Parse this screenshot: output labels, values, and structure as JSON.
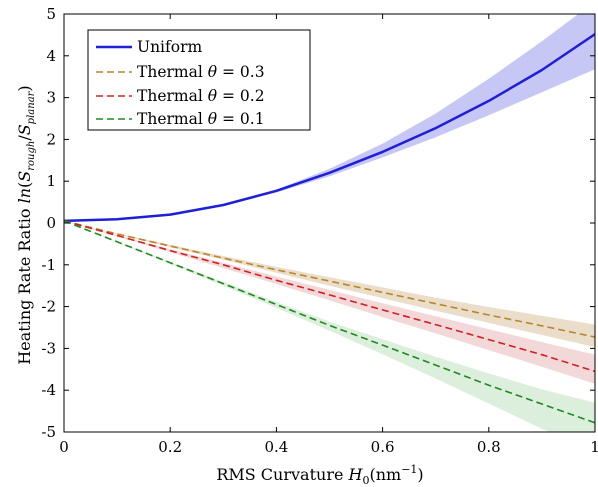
{
  "chart_data": {
    "type": "line",
    "title": "",
    "xlabel": {
      "text": "RMS Curvature ",
      "sym": "H",
      "sub": "0",
      "unit": "(nm",
      "sup": "−1",
      "close": ")"
    },
    "ylabel": {
      "text": "Heating Rate Ratio ",
      "ln": "ln",
      "open": "(",
      "s1": "S",
      "s1sub": "rough",
      "slash": "/",
      "s2": "S",
      "s2sub": "planar",
      "close": ")"
    },
    "xlim": [
      0,
      1
    ],
    "ylim": [
      -5,
      5
    ],
    "xticks": [
      "0",
      "0.2",
      "0.4",
      "0.6",
      "0.8",
      "1"
    ],
    "xtick_values": [
      0,
      0.2,
      0.4,
      0.6,
      0.8,
      1
    ],
    "yticks": [
      "5",
      "4",
      "3",
      "2",
      "1",
      "0",
      "-1",
      "-2",
      "-3",
      "-4",
      "-5"
    ],
    "ytick_values": [
      5,
      4,
      3,
      2,
      1,
      0,
      -1,
      -2,
      -3,
      -4,
      -5
    ],
    "grid": false,
    "legend_position": "top-left",
    "x": [
      0,
      0.1,
      0.2,
      0.3,
      0.4,
      0.5,
      0.6,
      0.7,
      0.8,
      0.9,
      1.0
    ],
    "series": [
      {
        "name": "Uniform",
        "name_prefix": "Uniform",
        "theta": "",
        "style": "solid",
        "color": "#1f1fd6",
        "band_color": "#9999ee",
        "values": [
          0.05,
          0.09,
          0.2,
          0.43,
          0.77,
          1.2,
          1.7,
          2.27,
          2.92,
          3.66,
          4.52
        ],
        "band_lower": [
          0.05,
          0.09,
          0.2,
          0.42,
          0.73,
          1.12,
          1.57,
          2.05,
          2.58,
          3.13,
          3.68
        ],
        "band_upper": [
          0.05,
          0.09,
          0.2,
          0.44,
          0.8,
          1.3,
          1.9,
          2.62,
          3.45,
          4.35,
          5.3
        ]
      },
      {
        "name": "Thermal θ = 0.3",
        "name_prefix": "Thermal ",
        "theta": "θ",
        "theta_value": " = 0.3",
        "style": "dashed",
        "color": "#b8862b",
        "band_color": "#d9c2a0",
        "values": [
          0.05,
          -0.26,
          -0.55,
          -0.84,
          -1.12,
          -1.39,
          -1.66,
          -1.93,
          -2.2,
          -2.46,
          -2.73
        ],
        "band_lower": [
          0.05,
          -0.27,
          -0.58,
          -0.88,
          -1.19,
          -1.5,
          -1.8,
          -2.1,
          -2.39,
          -2.68,
          -2.97
        ],
        "band_upper": [
          0.05,
          -0.25,
          -0.52,
          -0.79,
          -1.05,
          -1.3,
          -1.54,
          -1.79,
          -2.01,
          -2.22,
          -2.43
        ]
      },
      {
        "name": "Thermal θ = 0.2",
        "name_prefix": "Thermal ",
        "theta": "θ",
        "theta_value": " = 0.2",
        "style": "dashed",
        "color": "#d42020",
        "band_color": "#e8b8b8",
        "values": [
          0.05,
          -0.3,
          -0.66,
          -1.0,
          -1.37,
          -1.72,
          -2.08,
          -2.43,
          -2.79,
          -3.15,
          -3.55
        ],
        "band_lower": [
          0.05,
          -0.32,
          -0.7,
          -1.08,
          -1.46,
          -1.85,
          -2.25,
          -2.64,
          -3.04,
          -3.44,
          -3.85
        ],
        "band_upper": [
          0.05,
          -0.29,
          -0.63,
          -0.95,
          -1.28,
          -1.6,
          -1.92,
          -2.23,
          -2.54,
          -2.85,
          -3.15
        ]
      },
      {
        "name": "Thermal θ = 0.1",
        "name_prefix": "Thermal ",
        "theta": "θ",
        "theta_value": " = 0.1",
        "style": "dashed",
        "color": "#1f8a1f",
        "band_color": "#bfe0bf",
        "values": [
          0.05,
          -0.45,
          -0.95,
          -1.45,
          -1.95,
          -2.45,
          -2.92,
          -3.4,
          -3.88,
          -4.33,
          -4.78
        ],
        "band_lower": [
          0.05,
          -0.46,
          -0.98,
          -1.5,
          -2.03,
          -2.58,
          -3.14,
          -3.72,
          -4.32,
          -4.92,
          -5.5
        ],
        "band_upper": [
          0.05,
          -0.44,
          -0.93,
          -1.41,
          -1.89,
          -2.36,
          -2.78,
          -3.2,
          -3.6,
          -3.98,
          -4.3
        ]
      }
    ]
  }
}
